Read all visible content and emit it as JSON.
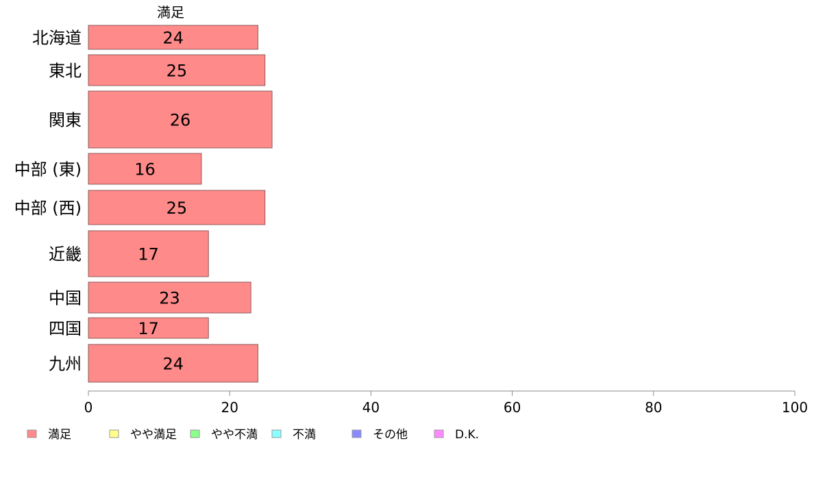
{
  "chart_data": {
    "type": "bar",
    "orientation": "horizontal",
    "stacked": true,
    "column_label": "満足",
    "categories": [
      "北海道",
      "東北",
      "関東",
      "中部 (東)",
      "中部 (西)",
      "近畿",
      "中国",
      "四国",
      "九州"
    ],
    "series": [
      {
        "name": "満足",
        "values": [
          24,
          25,
          26,
          16,
          25,
          17,
          23,
          17,
          24
        ]
      }
    ],
    "value_labels": [
      "24",
      "25",
      "26",
      "16",
      "25",
      "17",
      "23",
      "17",
      "24"
    ],
    "xlim": [
      0,
      100
    ],
    "xticks": [
      0,
      20,
      40,
      60,
      80,
      100
    ],
    "xtick_labels": [
      "0",
      "20",
      "40",
      "60",
      "80",
      "100"
    ],
    "grid": false,
    "legend_position": "bottom",
    "legend": [
      {
        "label": "満足",
        "color": "#ff8a8a"
      },
      {
        "label": "やや満足",
        "color": "#ffff8a"
      },
      {
        "label": "やや不満",
        "color": "#8aff8a"
      },
      {
        "label": "不満",
        "color": "#8affff"
      },
      {
        "label": "その他",
        "color": "#8a8aff"
      },
      {
        "label": "D.K.",
        "color": "#ff8aff"
      }
    ],
    "bar_color": "#ff8a8a",
    "bar_border": "#8c5a5a"
  }
}
